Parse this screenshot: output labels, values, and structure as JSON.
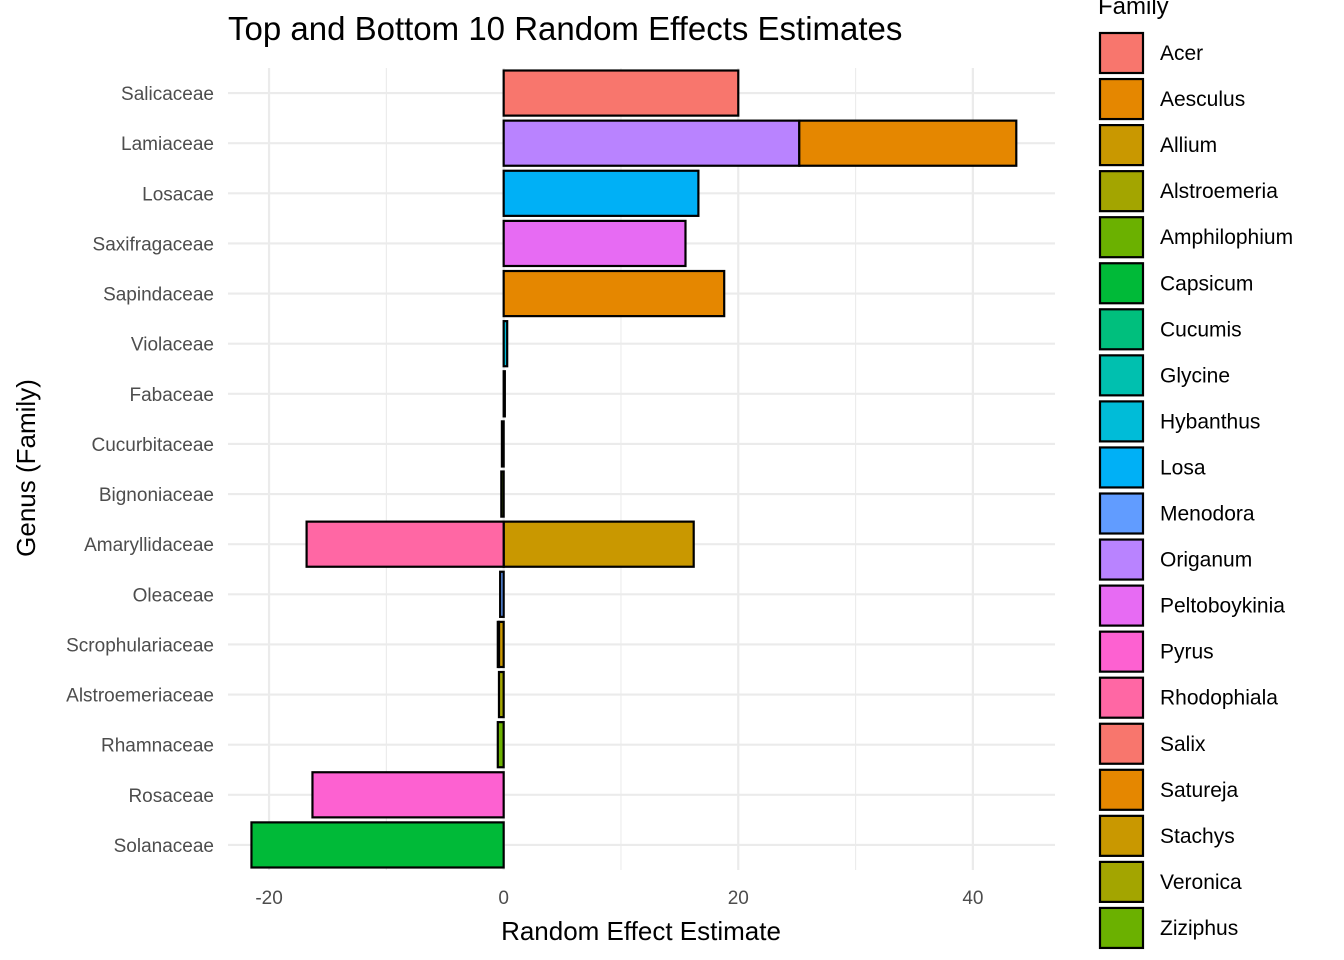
{
  "chart_data": {
    "type": "bar",
    "orientation": "horizontal",
    "stacked": true,
    "title": "Top and Bottom 10 Random Effects Estimates",
    "xlabel": "Random Effect Estimate",
    "ylabel": "Genus (Family)",
    "xlim": [
      -23.5,
      47
    ],
    "xticks": [
      -20,
      0,
      20,
      40
    ],
    "xtick_labels": [
      "-20",
      "0",
      "20",
      "40"
    ],
    "grid": true,
    "legend": {
      "title": "Family",
      "position": "right"
    },
    "categories": [
      "Salicaceae",
      "Lamiaceae",
      "Losacae",
      "Saxifragaceae",
      "Sapindaceae",
      "Violaceae",
      "Fabaceae",
      "Cucurbitaceae",
      "Bignoniaceae",
      "Amaryllidaceae",
      "Oleaceae",
      "Scrophulariaceae",
      "Alstroemeriaceae",
      "Rhamnaceae",
      "Rosaceae",
      "Solanaceae"
    ],
    "series": [
      {
        "name": "Acer",
        "color": "#F8766D",
        "values": [
          0,
          0,
          0,
          0,
          0,
          0,
          0,
          0,
          0,
          0,
          0,
          0,
          0,
          0,
          0,
          0
        ]
      },
      {
        "name": "Aesculus",
        "color": "#E58700",
        "values": [
          0,
          0,
          0,
          0,
          18.8,
          0,
          0,
          0,
          0,
          0,
          0,
          0,
          0,
          0,
          0,
          0
        ]
      },
      {
        "name": "Allium",
        "color": "#C99800",
        "values": [
          0,
          0,
          0,
          0,
          0,
          0,
          0,
          0,
          0,
          16.2,
          0,
          0,
          0,
          0,
          0,
          0
        ]
      },
      {
        "name": "Alstroemeria",
        "color": "#A3A500",
        "values": [
          0,
          0,
          0,
          0,
          0,
          0,
          0,
          0,
          0,
          0,
          0,
          0,
          -0.4,
          0,
          0,
          0
        ]
      },
      {
        "name": "Amphilophium",
        "color": "#6BB100",
        "values": [
          0,
          0,
          0,
          0,
          0,
          0,
          0,
          0,
          -0.2,
          0,
          0,
          0,
          0,
          0,
          0,
          0
        ]
      },
      {
        "name": "Capsicum",
        "color": "#00BA38",
        "values": [
          0,
          0,
          0,
          0,
          0,
          0,
          0,
          0,
          0,
          0,
          0,
          0,
          0,
          0,
          0,
          -21.5
        ]
      },
      {
        "name": "Cucumis",
        "color": "#00BF7D",
        "values": [
          0,
          0,
          0,
          0,
          0,
          0,
          0,
          -0.15,
          0,
          0,
          0,
          0,
          0,
          0,
          0,
          0
        ]
      },
      {
        "name": "Glycine",
        "color": "#00C0AF",
        "values": [
          0,
          0,
          0,
          0,
          0,
          0,
          0.1,
          0,
          0,
          0,
          0,
          0,
          0,
          0,
          0,
          0
        ]
      },
      {
        "name": "Hybanthus",
        "color": "#00BCD8",
        "values": [
          0,
          0,
          0,
          0,
          0,
          0.3,
          0,
          0,
          0,
          0,
          0,
          0,
          0,
          0,
          0,
          0
        ]
      },
      {
        "name": "Losa",
        "color": "#00B0F6",
        "values": [
          0,
          0,
          16.6,
          0,
          0,
          0,
          0,
          0,
          0,
          0,
          0,
          0,
          0,
          0,
          0,
          0
        ]
      },
      {
        "name": "Menodora",
        "color": "#619CFF",
        "values": [
          0,
          0,
          0,
          0,
          0,
          0,
          0,
          0,
          0,
          0,
          -0.3,
          0,
          0,
          0,
          0,
          0
        ]
      },
      {
        "name": "Origanum",
        "color": "#B983FF",
        "values": [
          0,
          25.2,
          0,
          0,
          0,
          0,
          0,
          0,
          0,
          0,
          0,
          0,
          0,
          0,
          0,
          0
        ]
      },
      {
        "name": "Peltoboykinia",
        "color": "#E76BF3",
        "values": [
          0,
          0,
          0,
          15.5,
          0,
          0,
          0,
          0,
          0,
          0,
          0,
          0,
          0,
          0,
          0,
          0
        ]
      },
      {
        "name": "Pyrus",
        "color": "#FD61D1",
        "values": [
          0,
          0,
          0,
          0,
          0,
          0,
          0,
          0,
          0,
          0,
          0,
          0,
          0,
          0,
          -16.3,
          0
        ]
      },
      {
        "name": "Rhodophiala",
        "color": "#FF67A4",
        "values": [
          0,
          0,
          0,
          0,
          0,
          0,
          0,
          0,
          0,
          -16.8,
          0,
          0,
          0,
          0,
          0,
          0
        ]
      },
      {
        "name": "Salix",
        "color": "#F8766D",
        "values": [
          20.0,
          0,
          0,
          0,
          0,
          0,
          0,
          0,
          0,
          0,
          0,
          0,
          0,
          0,
          0,
          0
        ]
      },
      {
        "name": "Satureja",
        "color": "#E58700",
        "values": [
          0,
          18.5,
          0,
          0,
          0,
          0,
          0,
          0,
          0,
          0,
          0,
          0,
          0,
          0,
          0,
          0
        ]
      },
      {
        "name": "Stachys",
        "color": "#C99800",
        "values": [
          0,
          0,
          0,
          0,
          0,
          0,
          0,
          0,
          0,
          0,
          0,
          -0.4,
          0,
          0,
          0,
          0
        ]
      },
      {
        "name": "Veronica",
        "color": "#A3A500",
        "values": [
          0,
          0,
          0,
          0,
          0,
          0,
          0,
          0,
          0,
          0,
          0,
          -0.1,
          0,
          0,
          0,
          0
        ]
      },
      {
        "name": "Ziziphus",
        "color": "#6BB100",
        "values": [
          0,
          0,
          0,
          0,
          0,
          0,
          0,
          0,
          0,
          0,
          0,
          0,
          0,
          -0.5,
          0,
          0
        ]
      }
    ]
  }
}
